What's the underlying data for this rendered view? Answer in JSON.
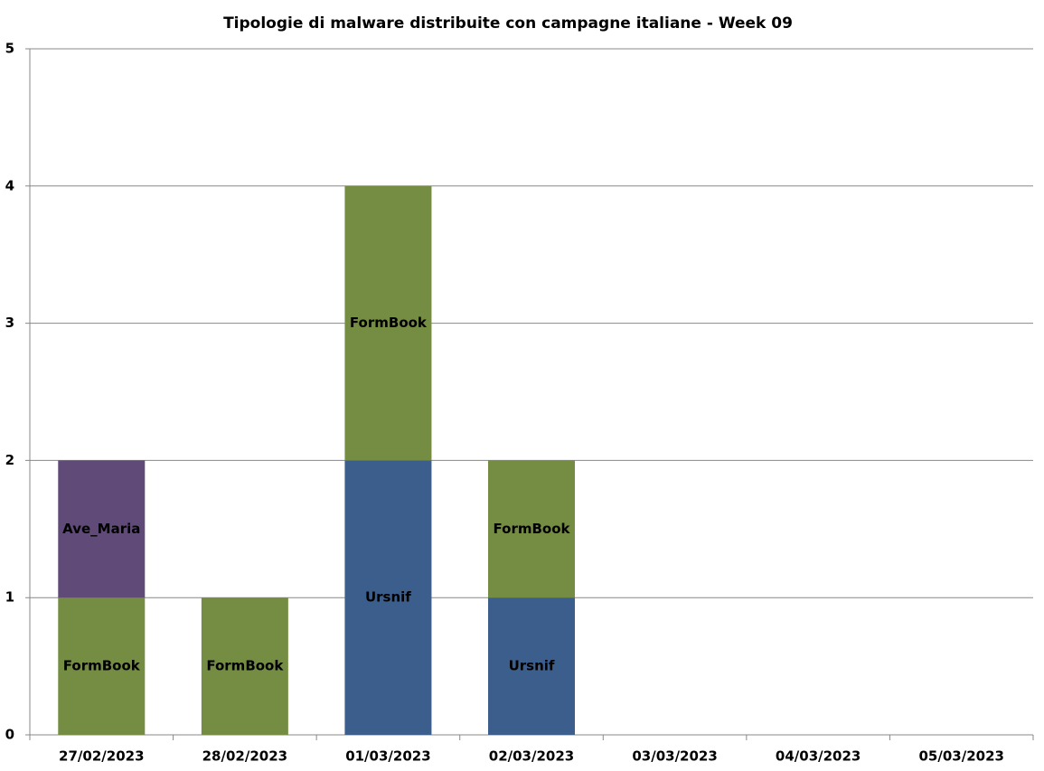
{
  "chart_data": {
    "type": "stacked_bar",
    "title": "Tipologie  di malware distribuite con campagne italiane - Week 09",
    "categories": [
      "27/02/2023",
      "28/02/2023",
      "01/03/2023",
      "02/03/2023",
      "03/03/2023",
      "04/03/2023",
      "05/03/2023"
    ],
    "series": [
      {
        "name": "Ursnif",
        "color": "#3b5e8c",
        "values": [
          0,
          0,
          2,
          1,
          0,
          0,
          0
        ]
      },
      {
        "name": "FormBook",
        "color": "#758d42",
        "values": [
          1,
          1,
          2,
          1,
          0,
          0,
          0
        ]
      },
      {
        "name": "Ave_Maria",
        "color": "#5f4a78",
        "values": [
          1,
          0,
          0,
          0,
          0,
          0,
          0
        ]
      }
    ],
    "ylim": [
      0,
      5
    ],
    "yticks": [
      0,
      1,
      2,
      3,
      4,
      5
    ],
    "grid": true
  }
}
